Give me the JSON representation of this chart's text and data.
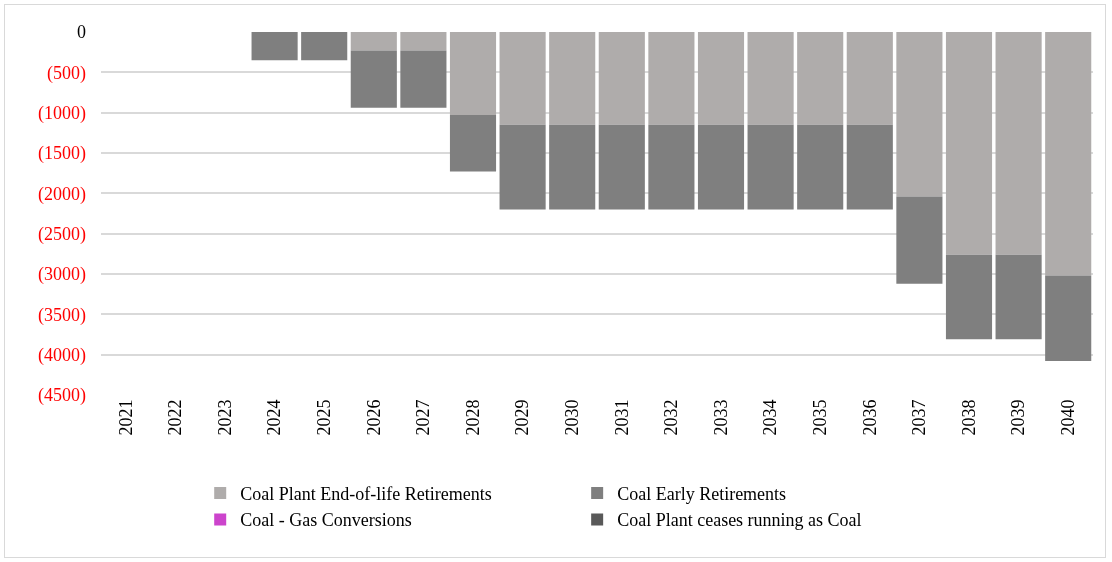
{
  "chart_data": {
    "type": "bar",
    "stacked": true,
    "categories": [
      "2021",
      "2022",
      "2023",
      "2024",
      "2025",
      "2026",
      "2027",
      "2028",
      "2029",
      "2030",
      "2031",
      "2032",
      "2033",
      "2034",
      "2035",
      "2036",
      "2037",
      "2038",
      "2039",
      "2040"
    ],
    "series": [
      {
        "name": "Coal Plant End-of-life Retirements",
        "color": "#afacab",
        "values": [
          null,
          null,
          null,
          null,
          null,
          -230,
          -230,
          -1030,
          -1150,
          -1150,
          -1150,
          -1150,
          -1150,
          -1150,
          -1150,
          -1150,
          -2040,
          -2760,
          -2760,
          -3020
        ]
      },
      {
        "name": "Coal Early Retirements",
        "color": "#7f7f7f",
        "values": [
          null,
          null,
          null,
          -350,
          -350,
          -710,
          -710,
          -700,
          -1050,
          -1050,
          -1050,
          -1050,
          -1050,
          -1050,
          -1050,
          -1050,
          -1080,
          -1050,
          -1050,
          -1060
        ]
      },
      {
        "name": "Coal - Gas Conversions",
        "color": "#cc44cc",
        "values": [
          null,
          null,
          null,
          null,
          null,
          null,
          null,
          null,
          null,
          null,
          null,
          null,
          null,
          null,
          null,
          null,
          null,
          null,
          null,
          null
        ]
      },
      {
        "name": "Coal Plant ceases running as Coal",
        "color": "#595959",
        "values": [
          null,
          null,
          null,
          null,
          null,
          null,
          null,
          null,
          null,
          null,
          null,
          null,
          null,
          null,
          null,
          null,
          null,
          null,
          null,
          null
        ]
      }
    ],
    "ylim": [
      -4500,
      0
    ],
    "yticks": [
      0,
      {
        "value": -500,
        "label": "(500)"
      },
      {
        "value": -1000,
        "label": "(1000)"
      },
      {
        "value": -1500,
        "label": "(1500)"
      },
      {
        "value": -2000,
        "label": "(2000)"
      },
      {
        "value": -2500,
        "label": "(2500)"
      },
      {
        "value": -3000,
        "label": "(3000)"
      },
      {
        "value": -3500,
        "label": "(3500)"
      },
      {
        "value": -4000,
        "label": "(4000)"
      },
      {
        "value": -4500,
        "label": "(4500)"
      }
    ],
    "grid": "y",
    "legend": "bottom"
  }
}
